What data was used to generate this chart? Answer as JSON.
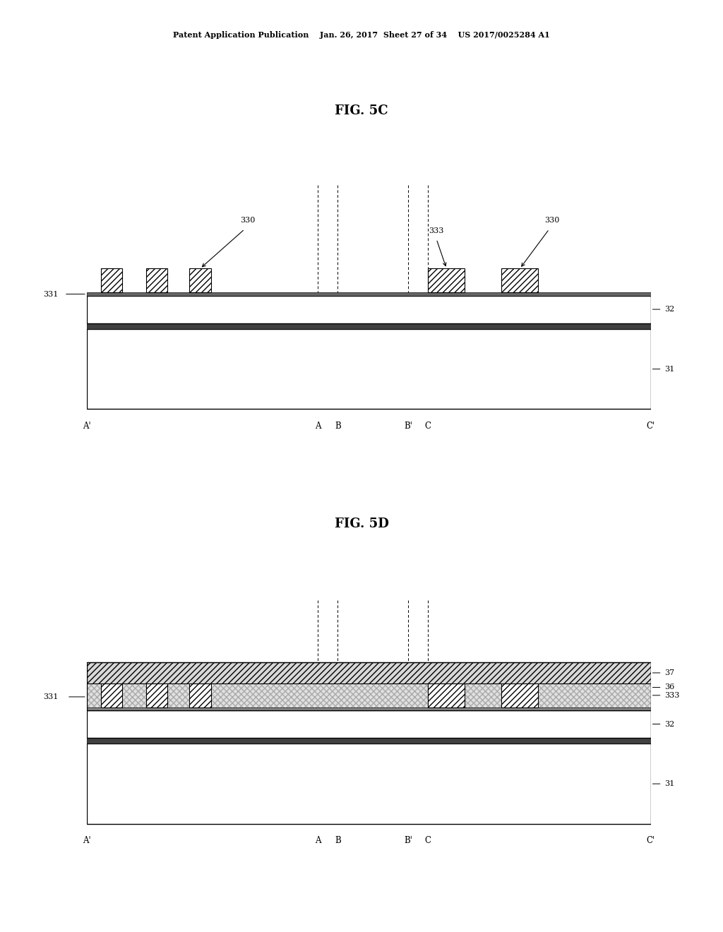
{
  "title_header": "Patent Application Publication    Jan. 26, 2017  Sheet 27 of 34    US 2017/0025284 A1",
  "fig5c_title": "FIG. 5C",
  "fig5d_title": "FIG. 5D",
  "background": "#ffffff",
  "line_color": "#000000"
}
